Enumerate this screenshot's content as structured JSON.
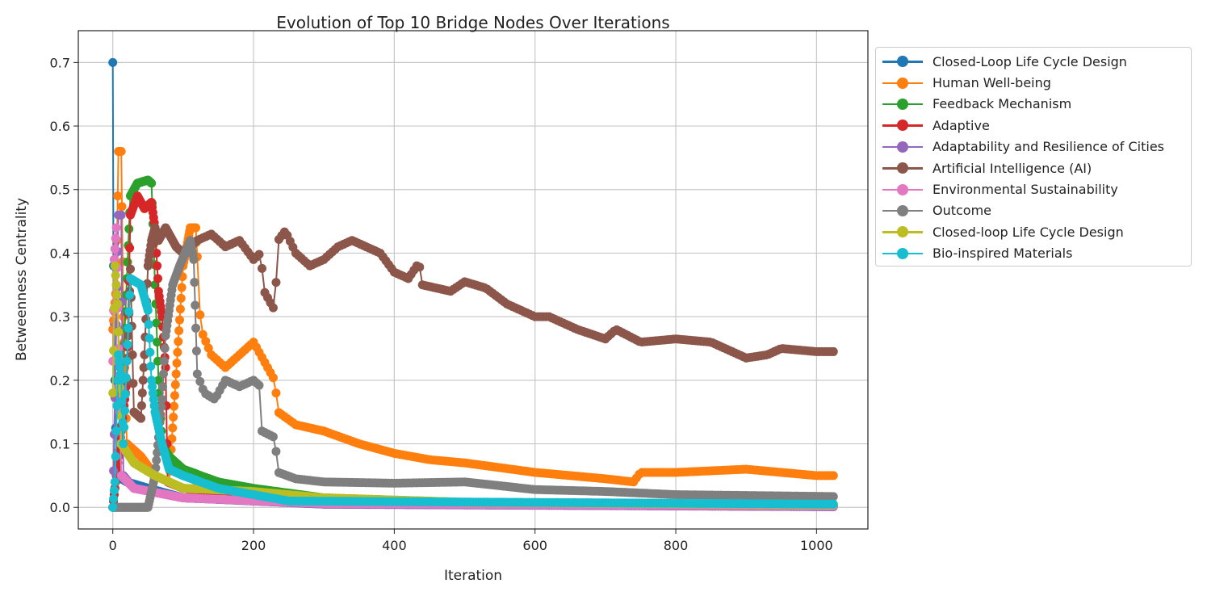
{
  "chart_data": {
    "type": "line",
    "title": "Evolution of Top 10 Bridge Nodes Over Iterations",
    "xlabel": "Iteration",
    "ylabel": "Betweenness Centrality",
    "xlim": [
      -49,
      1073
    ],
    "ylim": [
      -0.034,
      0.75
    ],
    "xticks": [
      0,
      200,
      400,
      600,
      800,
      1000
    ],
    "xtick_labels": [
      "0",
      "200",
      "400",
      "600",
      "800",
      "1000"
    ],
    "yticks": [
      0.0,
      0.1,
      0.2,
      0.3,
      0.4,
      0.5,
      0.6,
      0.7
    ],
    "ytick_labels": [
      "0.0",
      "0.1",
      "0.2",
      "0.3",
      "0.4",
      "0.5",
      "0.6",
      "0.7"
    ],
    "grid": true,
    "legend_placement": "outside-right-top",
    "series": [
      {
        "name": "Closed-Loop Life Cycle Design",
        "color": "#1f77b4",
        "points": [
          [
            0,
            0.7
          ],
          [
            1,
            0.38
          ],
          [
            3,
            0.2
          ],
          [
            5,
            0.05
          ],
          [
            20,
            0.04
          ],
          [
            50,
            0.03
          ],
          [
            100,
            0.015
          ],
          [
            300,
            0.005
          ],
          [
            1025,
            0.001
          ]
        ]
      },
      {
        "name": "Human Well-being",
        "color": "#ff7f0e",
        "points": [
          [
            0,
            0.28
          ],
          [
            5,
            0.35
          ],
          [
            8,
            0.56
          ],
          [
            12,
            0.56
          ],
          [
            15,
            0.3
          ],
          [
            20,
            0.1
          ],
          [
            40,
            0.08
          ],
          [
            60,
            0.05
          ],
          [
            80,
            0.04
          ],
          [
            100,
            0.38
          ],
          [
            110,
            0.44
          ],
          [
            118,
            0.44
          ],
          [
            125,
            0.28
          ],
          [
            140,
            0.24
          ],
          [
            160,
            0.22
          ],
          [
            180,
            0.24
          ],
          [
            200,
            0.26
          ],
          [
            215,
            0.23
          ],
          [
            230,
            0.2
          ],
          [
            235,
            0.15
          ],
          [
            260,
            0.13
          ],
          [
            300,
            0.12
          ],
          [
            350,
            0.1
          ],
          [
            400,
            0.085
          ],
          [
            450,
            0.075
          ],
          [
            500,
            0.07
          ],
          [
            600,
            0.055
          ],
          [
            700,
            0.045
          ],
          [
            740,
            0.04
          ],
          [
            750,
            0.055
          ],
          [
            800,
            0.055
          ],
          [
            900,
            0.06
          ],
          [
            1000,
            0.05
          ],
          [
            1025,
            0.05
          ]
        ]
      },
      {
        "name": "Feedback Mechanism",
        "color": "#2ca02c",
        "points": [
          [
            0,
            0.0
          ],
          [
            10,
            0.1
          ],
          [
            25,
            0.49
          ],
          [
            35,
            0.51
          ],
          [
            50,
            0.515
          ],
          [
            55,
            0.51
          ],
          [
            60,
            0.35
          ],
          [
            65,
            0.2
          ],
          [
            70,
            0.1
          ],
          [
            80,
            0.08
          ],
          [
            100,
            0.06
          ],
          [
            150,
            0.04
          ],
          [
            200,
            0.03
          ],
          [
            300,
            0.015
          ],
          [
            500,
            0.008
          ],
          [
            1025,
            0.003
          ]
        ]
      },
      {
        "name": "Adaptive",
        "color": "#d62728",
        "points": [
          [
            0,
            0.0
          ],
          [
            20,
            0.2
          ],
          [
            25,
            0.46
          ],
          [
            35,
            0.49
          ],
          [
            45,
            0.47
          ],
          [
            55,
            0.48
          ],
          [
            60,
            0.44
          ],
          [
            65,
            0.34
          ],
          [
            70,
            0.3
          ],
          [
            75,
            0.22
          ],
          [
            78,
            0.04
          ],
          [
            100,
            0.03
          ],
          [
            200,
            0.015
          ],
          [
            500,
            0.005
          ],
          [
            1025,
            0.002
          ]
        ]
      },
      {
        "name": "Adaptability and Resilience of Cities",
        "color": "#9467bd",
        "points": [
          [
            0,
            0.0
          ],
          [
            8,
            0.46
          ],
          [
            12,
            0.46
          ],
          [
            15,
            0.05
          ],
          [
            30,
            0.03
          ],
          [
            100,
            0.015
          ],
          [
            300,
            0.005
          ],
          [
            1025,
            0.001
          ]
        ]
      },
      {
        "name": "Artificial Intelligence (AI)",
        "color": "#8c564b",
        "points": [
          [
            20,
            0.2
          ],
          [
            25,
            0.375
          ],
          [
            30,
            0.15
          ],
          [
            40,
            0.14
          ],
          [
            45,
            0.24
          ],
          [
            50,
            0.38
          ],
          [
            55,
            0.42
          ],
          [
            60,
            0.44
          ],
          [
            65,
            0.42
          ],
          [
            75,
            0.44
          ],
          [
            90,
            0.41
          ],
          [
            100,
            0.4
          ],
          [
            120,
            0.42
          ],
          [
            140,
            0.43
          ],
          [
            160,
            0.41
          ],
          [
            180,
            0.42
          ],
          [
            200,
            0.39
          ],
          [
            210,
            0.4
          ],
          [
            215,
            0.34
          ],
          [
            230,
            0.31
          ],
          [
            235,
            0.42
          ],
          [
            245,
            0.435
          ],
          [
            260,
            0.4
          ],
          [
            280,
            0.38
          ],
          [
            300,
            0.39
          ],
          [
            320,
            0.41
          ],
          [
            340,
            0.42
          ],
          [
            360,
            0.41
          ],
          [
            380,
            0.4
          ],
          [
            400,
            0.37
          ],
          [
            420,
            0.36
          ],
          [
            435,
            0.385
          ],
          [
            440,
            0.35
          ],
          [
            480,
            0.34
          ],
          [
            500,
            0.355
          ],
          [
            530,
            0.345
          ],
          [
            560,
            0.32
          ],
          [
            600,
            0.3
          ],
          [
            620,
            0.3
          ],
          [
            660,
            0.28
          ],
          [
            700,
            0.265
          ],
          [
            715,
            0.28
          ],
          [
            750,
            0.26
          ],
          [
            800,
            0.265
          ],
          [
            850,
            0.26
          ],
          [
            900,
            0.235
          ],
          [
            930,
            0.24
          ],
          [
            950,
            0.25
          ],
          [
            1000,
            0.245
          ],
          [
            1025,
            0.245
          ]
        ]
      },
      {
        "name": "Environmental Sustainability",
        "color": "#e377c2",
        "points": [
          [
            0,
            0.23
          ],
          [
            2,
            0.39
          ],
          [
            5,
            0.44
          ],
          [
            8,
            0.25
          ],
          [
            12,
            0.05
          ],
          [
            30,
            0.03
          ],
          [
            100,
            0.015
          ],
          [
            300,
            0.006
          ],
          [
            1025,
            0.002
          ]
        ]
      },
      {
        "name": "Outcome",
        "color": "#7f7f7f",
        "points": [
          [
            0,
            0.0
          ],
          [
            50,
            0.0
          ],
          [
            60,
            0.05
          ],
          [
            70,
            0.17
          ],
          [
            75,
            0.27
          ],
          [
            85,
            0.35
          ],
          [
            95,
            0.38
          ],
          [
            110,
            0.42
          ],
          [
            115,
            0.39
          ],
          [
            120,
            0.21
          ],
          [
            130,
            0.18
          ],
          [
            145,
            0.17
          ],
          [
            160,
            0.2
          ],
          [
            180,
            0.19
          ],
          [
            200,
            0.2
          ],
          [
            210,
            0.19
          ],
          [
            212,
            0.12
          ],
          [
            230,
            0.11
          ],
          [
            235,
            0.055
          ],
          [
            260,
            0.045
          ],
          [
            300,
            0.04
          ],
          [
            400,
            0.038
          ],
          [
            500,
            0.04
          ],
          [
            600,
            0.028
          ],
          [
            700,
            0.025
          ],
          [
            800,
            0.02
          ],
          [
            1025,
            0.017
          ]
        ]
      },
      {
        "name": "Closed-loop Life Cycle Design",
        "color": "#bcbd22",
        "points": [
          [
            0,
            0.18
          ],
          [
            3,
            0.38
          ],
          [
            7,
            0.32
          ],
          [
            12,
            0.1
          ],
          [
            30,
            0.07
          ],
          [
            60,
            0.05
          ],
          [
            100,
            0.03
          ],
          [
            200,
            0.025
          ],
          [
            300,
            0.015
          ],
          [
            500,
            0.008
          ],
          [
            1025,
            0.004
          ]
        ]
      },
      {
        "name": "Bio-inspired Materials",
        "color": "#17becf",
        "points": [
          [
            0,
            0.0
          ],
          [
            3,
            0.04
          ],
          [
            8,
            0.24
          ],
          [
            12,
            0.2
          ],
          [
            15,
            0.1
          ],
          [
            25,
            0.36
          ],
          [
            40,
            0.35
          ],
          [
            50,
            0.31
          ],
          [
            55,
            0.2
          ],
          [
            60,
            0.15
          ],
          [
            70,
            0.1
          ],
          [
            80,
            0.06
          ],
          [
            100,
            0.05
          ],
          [
            150,
            0.03
          ],
          [
            200,
            0.02
          ],
          [
            250,
            0.01
          ],
          [
            1025,
            0.005
          ]
        ]
      }
    ]
  }
}
